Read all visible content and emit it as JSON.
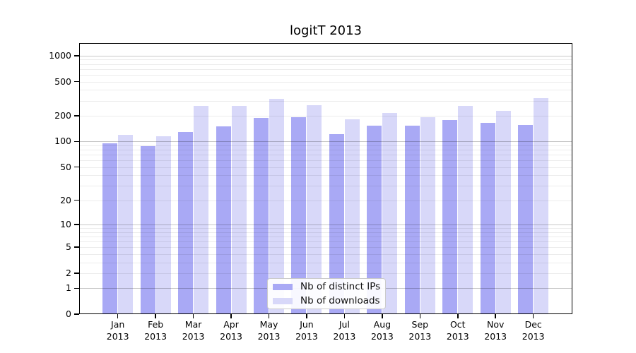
{
  "chart_data": {
    "type": "bar",
    "title": "logitT 2013",
    "categories": [
      "Jan 2013",
      "Feb 2013",
      "Mar 2013",
      "Apr 2013",
      "May 2013",
      "Jun 2013",
      "Jul 2013",
      "Aug 2013",
      "Sep 2013",
      "Oct 2013",
      "Nov 2013",
      "Dec 2013"
    ],
    "series": [
      {
        "name": "Nb of distinct IPs",
        "color": "#a9a9f5",
        "values": [
          95,
          88,
          128,
          150,
          188,
          194,
          121,
          154,
          153,
          178,
          165,
          157
        ]
      },
      {
        "name": "Nb of downloads",
        "color": "#d8d8f9",
        "values": [
          120,
          116,
          260,
          260,
          312,
          267,
          182,
          216,
          193,
          258,
          226,
          322
        ]
      }
    ],
    "yscale": "log1p",
    "yticks": [
      0,
      1,
      2,
      5,
      10,
      20,
      50,
      100,
      200,
      500,
      1000
    ],
    "ylim": [
      0,
      1400
    ],
    "xlabel": "",
    "ylabel": "",
    "grid": true,
    "legend_position": "lower center"
  }
}
